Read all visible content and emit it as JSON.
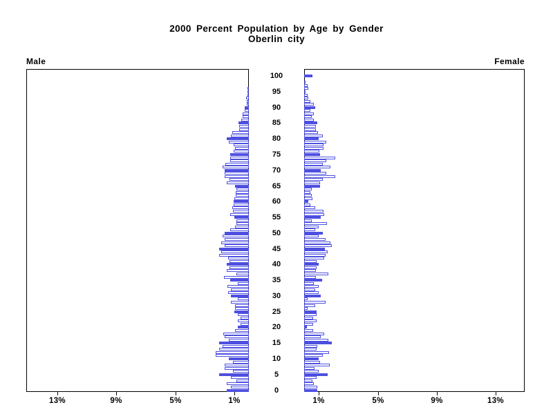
{
  "chart_data": {
    "type": "bar",
    "subtype": "population-pyramid",
    "title": "2000 Percent Population by Age by Gender",
    "subtitle": "Oberlin city",
    "left_header": "Male",
    "right_header": "Female",
    "age_min": 0,
    "age_max": 100,
    "age_tick_step": 5,
    "age_axis_ticks": [
      "0",
      "5",
      "10",
      "15",
      "20",
      "25",
      "30",
      "35",
      "40",
      "45",
      "50",
      "55",
      "60",
      "65",
      "70",
      "75",
      "80",
      "85",
      "90",
      "95",
      "100"
    ],
    "x_axis": {
      "male_tick_labels": [
        "13%",
        "9%",
        "5%",
        "1%"
      ],
      "male_tick_values": [
        13,
        9,
        5,
        1
      ],
      "female_tick_labels": [
        "1%",
        "5%",
        "9%",
        "13%"
      ],
      "female_tick_values": [
        1,
        5,
        9,
        13
      ],
      "xlim_pct": [
        0,
        15
      ],
      "grid": false
    },
    "highlight_every": 5,
    "colors": {
      "bar_fill": "#4d4fe0",
      "bar_outline": "#4d4fe0",
      "axis": "#000000",
      "background": "#ffffff"
    },
    "series": [
      {
        "name": "Male",
        "values": [
          1.5,
          1.2,
          1.5,
          0.85,
          1.2,
          2.0,
          1.1,
          1.65,
          1.65,
          1.1,
          1.35,
          2.25,
          2.25,
          2.0,
          1.8,
          2.0,
          1.35,
          1.65,
          1.75,
          0.95,
          0.75,
          0.55,
          0.75,
          0.55,
          0.75,
          1.0,
          0.95,
          0.95,
          1.2,
          0.75,
          1.2,
          1.4,
          1.2,
          1.45,
          0.75,
          1.25,
          1.7,
          0.85,
          1.5,
          1.3,
          1.5,
          1.3,
          1.4,
          2.0,
          1.9,
          2.0,
          1.65,
          1.9,
          1.65,
          1.8,
          1.65,
          1.25,
          0.95,
          0.85,
          0.85,
          1.0,
          1.25,
          1.1,
          1.15,
          1.05,
          1.05,
          1.0,
          0.9,
          0.9,
          0.85,
          0.95,
          1.5,
          1.3,
          1.65,
          1.65,
          1.65,
          1.8,
          1.6,
          1.25,
          1.25,
          1.25,
          1.05,
          0.95,
          1.05,
          1.35,
          1.5,
          1.2,
          1.15,
          0.65,
          0.65,
          0.7,
          0.5,
          0.4,
          0.4,
          0.3,
          0.3,
          0.15,
          0.15,
          0.2,
          0.1,
          0.1,
          0.08,
          0,
          0,
          0,
          0
        ]
      },
      {
        "name": "Female",
        "values": [
          0.9,
          0.9,
          0.65,
          0.55,
          0.85,
          1.6,
          1.0,
          0.7,
          1.75,
          1.1,
          1.0,
          1.25,
          1.7,
          0.85,
          0.9,
          1.9,
          1.65,
          1.15,
          1.35,
          0.6,
          0.2,
          0.6,
          0.85,
          0.6,
          0.85,
          0.85,
          0.25,
          0.75,
          1.45,
          0.25,
          1.15,
          1.0,
          0.75,
          1.0,
          0.65,
          1.2,
          0.8,
          1.65,
          0.8,
          0.85,
          1.0,
          0.85,
          1.35,
          1.45,
          1.6,
          1.4,
          1.9,
          1.8,
          1.45,
          1.0,
          1.25,
          0.75,
          1.0,
          1.55,
          0.5,
          1.15,
          1.35,
          1.3,
          0.75,
          0.4,
          0.3,
          0.55,
          0.5,
          0.4,
          0.5,
          1.1,
          1.1,
          1.25,
          2.1,
          1.5,
          1.15,
          1.8,
          1.25,
          1.5,
          2.1,
          1.1,
          1.05,
          1.3,
          1.3,
          1.5,
          1.0,
          1.25,
          0.95,
          0.8,
          0.8,
          0.9,
          0.65,
          0.5,
          0.65,
          0.4,
          0.75,
          0.65,
          0.4,
          0.3,
          0.25,
          0.1,
          0.3,
          0.25,
          0.1,
          0,
          0.55
        ]
      }
    ]
  }
}
